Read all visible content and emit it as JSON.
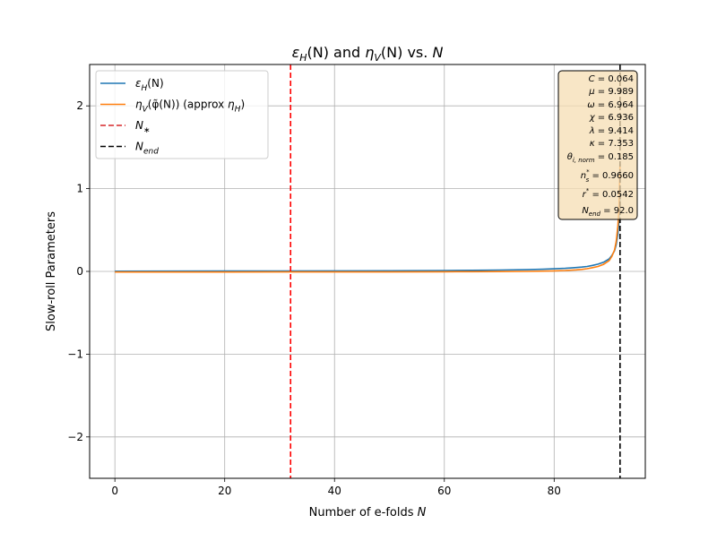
{
  "chart_data": {
    "type": "line",
    "title": {
      "a": "ε",
      "a_sub": "H",
      "b": "(N) and ",
      "c": "η",
      "c_sub": "V",
      "d": "(N) vs. ",
      "e": "N"
    },
    "xlabel": {
      "text": "Number of e-folds ",
      "var": "N"
    },
    "ylabel": "Slow-roll Parameters",
    "xlim": [
      -4.6,
      96.6
    ],
    "ylim": [
      -2.5,
      2.5
    ],
    "xticks": [
      0,
      20,
      40,
      60,
      80
    ],
    "xtick_labels": [
      "0",
      "20",
      "40",
      "60",
      "80"
    ],
    "yticks": [
      2,
      1,
      0,
      -1,
      -2
    ],
    "ytick_labels": [
      "2",
      "1",
      "0",
      "−1",
      "−2"
    ],
    "grid": true,
    "legend_position": "top-left",
    "legend": [
      {
        "label_a": "ε",
        "label_sub": "H",
        "label_b": "(N)",
        "label_c": "",
        "label_d": "",
        "label_e": "",
        "style": "solid",
        "color": "#1f77b4"
      },
      {
        "label_a": "η",
        "label_sub": "V",
        "label_b": "(φ̃(N)) (approx ",
        "label_c": "η",
        "label_d": "H",
        "label_e": ")",
        "style": "solid",
        "color": "#ff7f0e"
      },
      {
        "label_a": "N",
        "label_sub": "∗",
        "label_b": "",
        "label_c": "",
        "label_d": "",
        "label_e": "",
        "style": "dashed",
        "color": "#d62728"
      },
      {
        "label_a": "N",
        "label_sub": "end",
        "label_b": "",
        "label_c": "",
        "label_d": "",
        "label_e": "",
        "style": "dashed",
        "color": "#000000"
      }
    ],
    "vlines": [
      {
        "x": 32,
        "color": "#ff0000",
        "name": "n-star"
      },
      {
        "x": 92,
        "color": "#000000",
        "name": "n-end"
      }
    ],
    "series": [
      {
        "color": "#1f77b4",
        "x": [
          0,
          10,
          20,
          30,
          40,
          50,
          60,
          65,
          70,
          75,
          78,
          80,
          82,
          84,
          85,
          86,
          87,
          88,
          89,
          90,
          90.5,
          91,
          91.3,
          91.6,
          91.8,
          92
        ],
        "y": [
          0.002,
          0.003,
          0.004,
          0.005,
          0.006,
          0.008,
          0.011,
          0.013,
          0.016,
          0.021,
          0.026,
          0.031,
          0.037,
          0.046,
          0.052,
          0.06,
          0.072,
          0.088,
          0.11,
          0.15,
          0.19,
          0.25,
          0.32,
          0.45,
          0.6,
          0.9
        ]
      },
      {
        "color": "#ff7f0e",
        "x": [
          0,
          10,
          20,
          30,
          40,
          50,
          60,
          65,
          70,
          75,
          78,
          80,
          82,
          84,
          85,
          86,
          87,
          88,
          89,
          90,
          90.5,
          91,
          91.3,
          91.6,
          91.8,
          92
        ],
        "y": [
          -0.008,
          -0.008,
          -0.008,
          -0.007,
          -0.007,
          -0.006,
          -0.004,
          -0.003,
          -0.002,
          0.0,
          0.003,
          0.006,
          0.011,
          0.018,
          0.024,
          0.032,
          0.045,
          0.06,
          0.085,
          0.13,
          0.18,
          0.26,
          0.36,
          0.55,
          0.75,
          1.3
        ]
      }
    ],
    "annotation": {
      "position": "top-right",
      "lines": [
        {
          "sym": "C",
          "sub": "",
          "sup": "",
          "val": " = 0.064"
        },
        {
          "sym": "μ",
          "sub": "",
          "sup": "",
          "val": " = 9.989"
        },
        {
          "sym": "ω",
          "sub": "",
          "sup": "",
          "val": " = 6.964"
        },
        {
          "sym": "χ",
          "sub": "",
          "sup": "",
          "val": " = 6.936"
        },
        {
          "sym": "λ",
          "sub": "",
          "sup": "",
          "val": " = 9.414"
        },
        {
          "sym": "κ",
          "sub": "",
          "sup": "",
          "val": " = 7.353"
        },
        {
          "sym": "θ",
          "sub": "i, norm",
          "sup": "",
          "val": " = 0.185"
        },
        {
          "sym": "n",
          "sub": "s",
          "sup": "*",
          "val": " = 0.9660"
        },
        {
          "sym": "r",
          "sub": "",
          "sup": "*",
          "val": " = 0.0542"
        },
        {
          "sym": "N",
          "sub": "end",
          "sup": "",
          "val": " = 92.0"
        }
      ]
    }
  }
}
